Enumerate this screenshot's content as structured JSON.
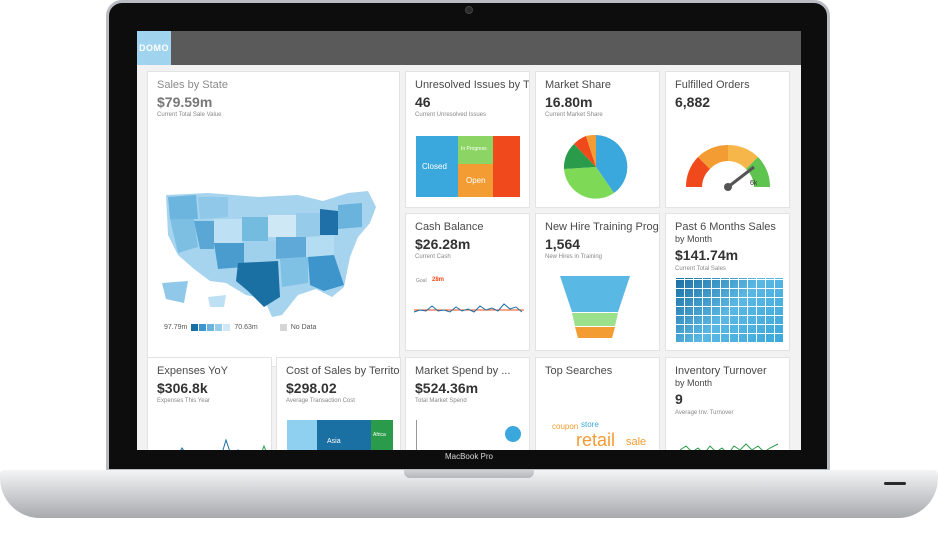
{
  "app": {
    "logo": "DOMO",
    "device_label": "MacBook Pro"
  },
  "cards": {
    "sales_by_state": {
      "title": "Sales by State",
      "value": "$79.59m",
      "subtitle": "Current Total Sale Value",
      "legend_min": "97.79m",
      "legend_max": "70.63m",
      "legend_nodata": "No Data"
    },
    "unresolved": {
      "title": "Unresolved Issues by T...",
      "value": "46",
      "subtitle": "Current Unresolved Issues",
      "labels": {
        "closed": "Closed",
        "in_progress": "In Progress",
        "open": "Open"
      }
    },
    "market_share": {
      "title": "Market Share",
      "value": "16.80m",
      "subtitle": "Current Market Share"
    },
    "fulfilled": {
      "title": "Fulfilled Orders",
      "value": "6,882",
      "gauge_label": "6k"
    },
    "cash": {
      "title": "Cash Balance",
      "value": "$26.28m",
      "subtitle": "Current Cash",
      "goal_label": "Goal",
      "goal_value": "28m"
    },
    "training": {
      "title": "New Hire Training Prog...",
      "value": "1,564",
      "subtitle": "New Hires in Training"
    },
    "past6": {
      "title": "Past 6 Months Sales",
      "by": "by Month",
      "value": "$141.74m",
      "subtitle": "Current Total Sales"
    },
    "expenses": {
      "title": "Expenses YoY",
      "value": "$306.8k",
      "subtitle": "Expenses This Year"
    },
    "cost_sales": {
      "title": "Cost of Sales by Territory",
      "value": "$298.02",
      "subtitle": "Average Transaction Cost",
      "labels": {
        "asia": "Asia",
        "africa": "Africa"
      }
    },
    "market_spend": {
      "title": "Market Spend by ...",
      "value": "$524.36m",
      "subtitle": "Total Market Spend"
    },
    "top_searches": {
      "title": "Top Searches",
      "words": [
        "coupon",
        "store",
        "retail",
        "sale"
      ]
    },
    "inventory": {
      "title": "Inventory Turnover",
      "by": "by Month",
      "value": "9",
      "subtitle": "Average Inv. Turnover"
    }
  },
  "colors": {
    "accent_blue": "#3aa8dc",
    "dark_blue": "#1a6fa3",
    "orange": "#f39c34",
    "red": "#f04a1c",
    "green": "#7ed957",
    "topbar": "#5a5a5a"
  }
}
